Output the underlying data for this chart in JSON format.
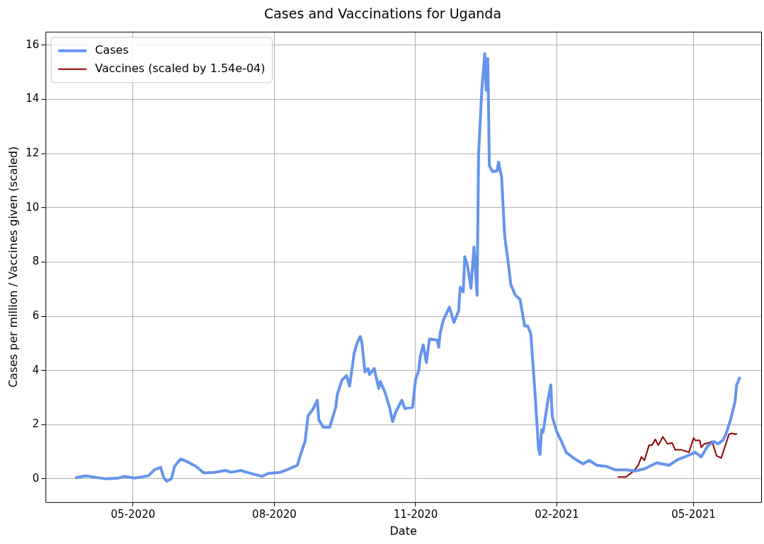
{
  "chart_data": {
    "type": "line",
    "title": "Cases and Vaccinations for Uganda",
    "xlabel": "Date",
    "ylabel": "Cases per million / Vaccines given (scaled)",
    "xlim": [
      "2020-03-05",
      "2021-06-14"
    ],
    "ylim": [
      -0.86,
      16.5
    ],
    "xticks": [
      {
        "value": "2020-05-01",
        "label": "05-2020"
      },
      {
        "value": "2020-08-01",
        "label": "08-2020"
      },
      {
        "value": "2020-11-01",
        "label": "11-2020"
      },
      {
        "value": "2021-02-01",
        "label": "02-2021"
      },
      {
        "value": "2021-05-01",
        "label": "05-2021"
      }
    ],
    "yticks": [
      0,
      2,
      4,
      6,
      8,
      10,
      12,
      14,
      16
    ],
    "grid": true,
    "legend": "top left",
    "marker": "none",
    "series": [
      {
        "name": "Cases",
        "color": "#6495ed",
        "x": [
          "2020-03-25",
          "2020-03-31",
          "2020-04-13",
          "2020-04-21",
          "2020-04-25",
          "2020-05-02",
          "2020-05-11",
          "2020-05-15",
          "2020-05-19",
          "2020-05-21",
          "2020-05-23",
          "2020-05-26",
          "2020-05-28",
          "2020-06-01",
          "2020-06-05",
          "2020-06-11",
          "2020-06-16",
          "2020-06-23",
          "2020-06-30",
          "2020-07-04",
          "2020-07-10",
          "2020-07-16",
          "2020-07-24",
          "2020-07-28",
          "2020-08-05",
          "2020-08-10",
          "2020-08-16",
          "2020-08-18",
          "2020-08-21",
          "2020-08-23",
          "2020-08-26",
          "2020-08-29",
          "2020-08-30",
          "2020-09-02",
          "2020-09-06",
          "2020-09-10",
          "2020-09-11",
          "2020-09-14",
          "2020-09-17",
          "2020-09-19",
          "2020-09-22",
          "2020-09-24",
          "2020-09-26",
          "2020-09-27",
          "2020-09-29",
          "2020-10-01",
          "2020-10-02",
          "2020-10-05",
          "2020-10-08",
          "2020-10-09",
          "2020-10-12",
          "2020-10-15",
          "2020-10-17",
          "2020-10-19",
          "2020-10-23",
          "2020-10-25",
          "2020-10-30",
          "2020-11-01",
          "2020-11-03",
          "2020-11-04",
          "2020-11-06",
          "2020-11-08",
          "2020-11-10",
          "2020-11-15",
          "2020-11-16",
          "2020-11-17",
          "2020-11-19",
          "2020-11-23",
          "2020-11-26",
          "2020-11-29",
          "2020-11-30",
          "2020-12-02",
          "2020-12-03",
          "2020-12-05",
          "2020-12-07",
          "2020-12-09",
          "2020-12-11",
          "2020-12-12",
          "2020-12-14",
          "2020-12-16",
          "2020-12-17",
          "2020-12-18",
          "2020-12-19",
          "2020-12-21",
          "2020-12-24",
          "2020-12-25",
          "2020-12-27",
          "2020-12-29",
          "2020-12-31",
          "2021-01-02",
          "2021-01-05",
          "2021-01-08",
          "2021-01-11",
          "2021-01-13",
          "2021-01-15",
          "2021-01-16",
          "2021-01-18",
          "2021-01-20",
          "2021-01-21",
          "2021-01-22",
          "2021-01-23",
          "2021-01-26",
          "2021-01-28",
          "2021-01-29",
          "2021-02-01",
          "2021-02-04",
          "2021-02-07",
          "2021-02-13",
          "2021-02-18",
          "2021-02-22",
          "2021-02-27",
          "2021-03-05",
          "2021-03-11",
          "2021-03-18",
          "2021-03-24",
          "2021-03-30",
          "2021-04-07",
          "2021-04-15",
          "2021-04-21",
          "2021-04-27",
          "2021-05-02",
          "2021-05-06",
          "2021-05-10",
          "2021-05-14",
          "2021-05-17",
          "2021-05-20",
          "2021-05-22",
          "2021-05-25",
          "2021-05-28",
          "2021-05-29",
          "2021-05-31"
        ],
        "values": [
          0.04,
          0.11,
          0.0,
          0.02,
          0.09,
          0.03,
          0.11,
          0.34,
          0.42,
          0.03,
          -0.09,
          0.0,
          0.46,
          0.73,
          0.64,
          0.46,
          0.22,
          0.24,
          0.31,
          0.24,
          0.31,
          0.21,
          0.09,
          0.2,
          0.24,
          0.35,
          0.5,
          0.88,
          1.38,
          2.33,
          2.56,
          2.9,
          2.17,
          1.9,
          1.9,
          2.64,
          3.11,
          3.64,
          3.81,
          3.42,
          4.64,
          5.03,
          5.25,
          5.03,
          3.94,
          4.07,
          3.85,
          4.07,
          3.33,
          3.59,
          3.2,
          2.64,
          2.11,
          2.46,
          2.9,
          2.59,
          2.64,
          3.68,
          3.99,
          4.51,
          4.94,
          4.29,
          5.16,
          5.12,
          4.86,
          5.38,
          5.85,
          6.34,
          5.77,
          6.2,
          7.07,
          6.9,
          8.2,
          7.81,
          7.03,
          8.55,
          6.77,
          11.99,
          14.25,
          15.69,
          14.34,
          15.51,
          11.56,
          11.34,
          11.36,
          11.69,
          11.12,
          8.95,
          8.1,
          7.16,
          6.77,
          6.62,
          5.64,
          5.64,
          5.35,
          4.55,
          2.95,
          1.12,
          0.9,
          1.81,
          1.72,
          2.85,
          3.46,
          2.29,
          1.72,
          1.38,
          0.98,
          0.72,
          0.55,
          0.68,
          0.5,
          0.46,
          0.33,
          0.33,
          0.29,
          0.37,
          0.59,
          0.5,
          0.72,
          0.85,
          0.98,
          0.81,
          1.2,
          1.38,
          1.29,
          1.42,
          1.64,
          2.16,
          2.85,
          3.46,
          3.72
        ]
      },
      {
        "name": "Vaccines (scaled by 1.54e-04)",
        "color": "#8b0000",
        "x": [
          "2021-03-13",
          "2021-03-18",
          "2021-03-23",
          "2021-03-26",
          "2021-03-28",
          "2021-03-30",
          "2021-04-02",
          "2021-04-04",
          "2021-04-06",
          "2021-04-08",
          "2021-04-11",
          "2021-04-14",
          "2021-04-17",
          "2021-04-19",
          "2021-04-23",
          "2021-04-28",
          "2021-05-01",
          "2021-05-02",
          "2021-05-05",
          "2021-05-06",
          "2021-05-08",
          "2021-05-11",
          "2021-05-13",
          "2021-05-16",
          "2021-05-19",
          "2021-05-22",
          "2021-05-24",
          "2021-05-26",
          "2021-05-28",
          "2021-05-29"
        ],
        "values": [
          0.07,
          0.07,
          0.29,
          0.5,
          0.81,
          0.68,
          1.24,
          1.24,
          1.46,
          1.24,
          1.55,
          1.29,
          1.33,
          1.07,
          1.07,
          0.98,
          1.51,
          1.42,
          1.42,
          1.16,
          1.29,
          1.33,
          1.38,
          0.85,
          0.77,
          1.29,
          1.64,
          1.68,
          1.64,
          1.66
        ]
      }
    ]
  }
}
